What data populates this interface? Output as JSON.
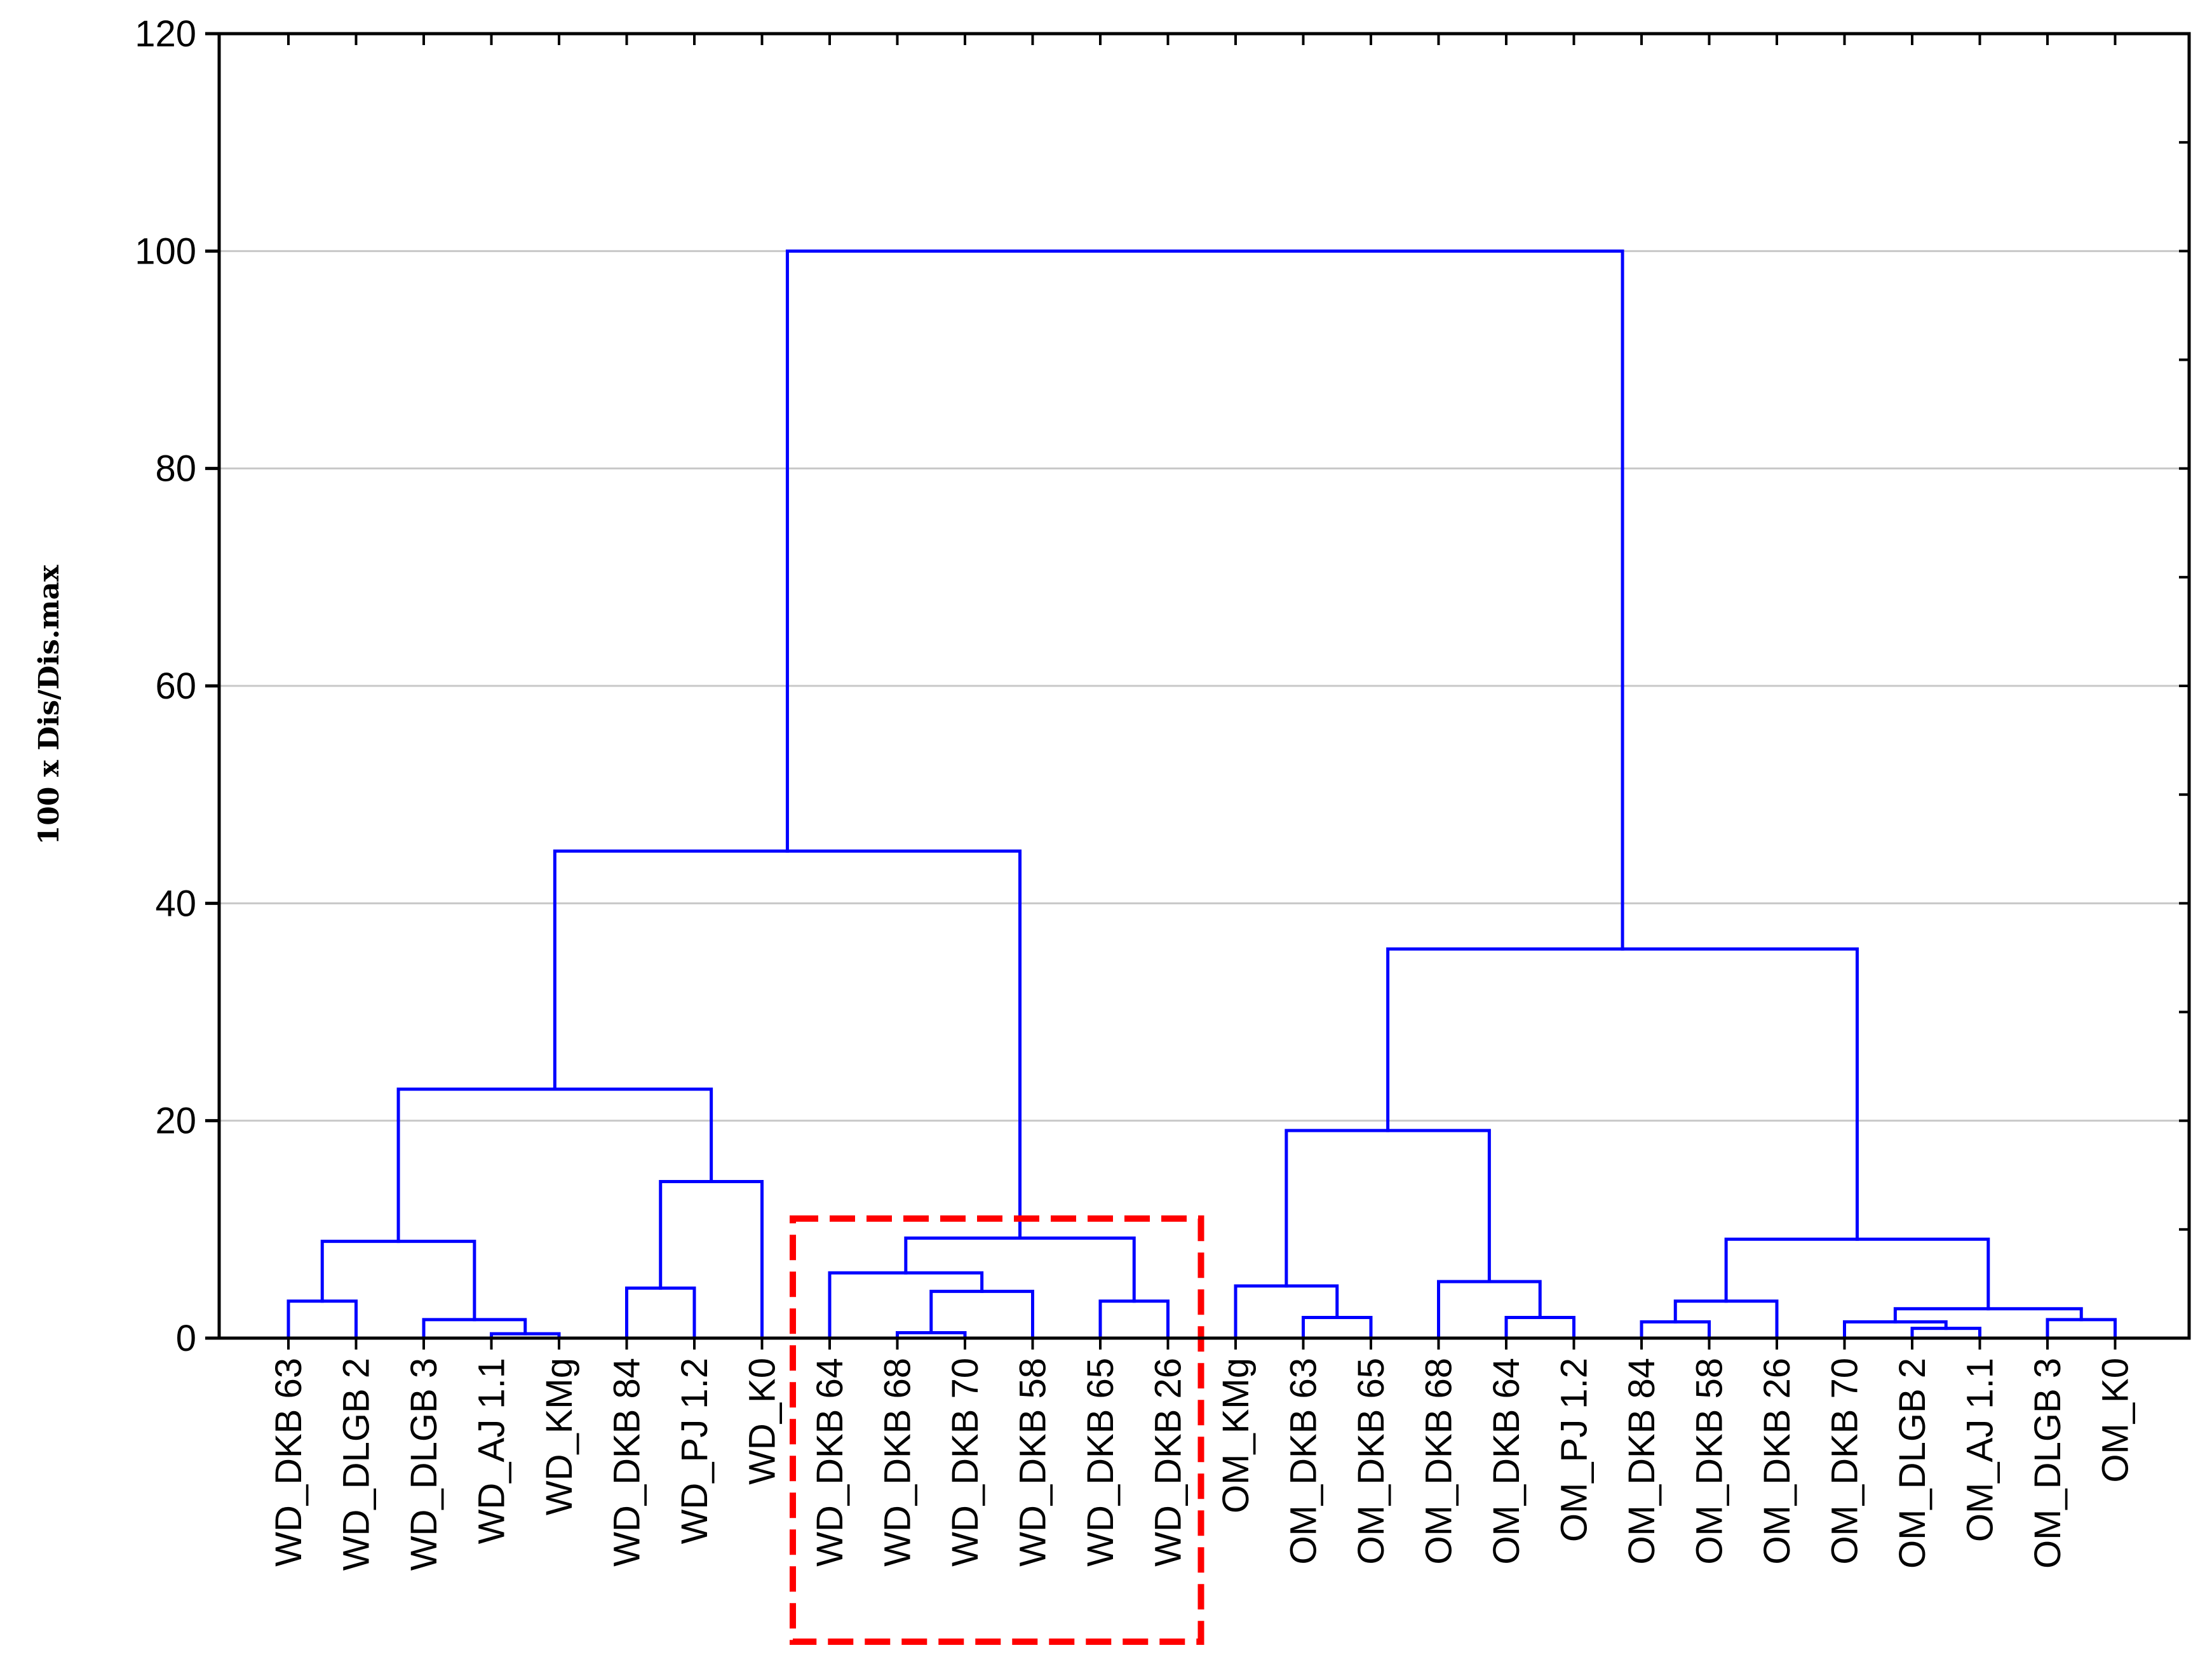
{
  "chart_data": {
    "type": "dendrogram",
    "ylabel": "100 x Dis/Dis.max",
    "xlabel": "",
    "title": "",
    "ylim": [
      0,
      120
    ],
    "yticks": [
      0,
      20,
      40,
      60,
      80,
      100,
      120
    ],
    "grid": true,
    "colors": {
      "links": "#0000ff",
      "grid": "#c8c8c8",
      "highlight": "#ff0000"
    },
    "leaves": [
      "WD_DKB 63",
      "WD_DLGB 2",
      "WD_DLGB 3",
      "WD_AJ 1.1",
      "WD_KMg",
      "WD_DKB 84",
      "WD_PJ 1.2",
      "WD_K0",
      "WD_DKB 64",
      "WD_DKB 68",
      "WD_DKB 70",
      "WD_DKB 58",
      "WD_DKB 65",
      "WD_DKB 26",
      "OM_KMg",
      "OM_DKB 63",
      "OM_DKB 65",
      "OM_DKB 68",
      "OM_DKB 64",
      "OM_PJ 1.2",
      "OM_DKB 84",
      "OM_DKB 58",
      "OM_DKB 26",
      "OM_DKB 70",
      "OM_DLGB 2",
      "OM_AJ 1.1",
      "OM_DLGB 3",
      "OM_K0"
    ],
    "merges": [
      {
        "id": "A",
        "children": [
          "L0",
          "L1"
        ],
        "height": 3.4
      },
      {
        "id": "B",
        "children": [
          "L3",
          "L4"
        ],
        "height": 0.4
      },
      {
        "id": "C",
        "children": [
          "L2",
          "B"
        ],
        "height": 1.7
      },
      {
        "id": "D",
        "children": [
          "A",
          "C"
        ],
        "height": 8.9
      },
      {
        "id": "E",
        "children": [
          "L5",
          "L6"
        ],
        "height": 4.6
      },
      {
        "id": "F",
        "children": [
          "E",
          "L7"
        ],
        "height": 14.4
      },
      {
        "id": "G",
        "children": [
          "D",
          "F"
        ],
        "height": 22.9
      },
      {
        "id": "H",
        "children": [
          "L9",
          "L10"
        ],
        "height": 0.5
      },
      {
        "id": "I",
        "children": [
          "H",
          "L11"
        ],
        "height": 4.3
      },
      {
        "id": "J",
        "children": [
          "L8",
          "I"
        ],
        "height": 6.0
      },
      {
        "id": "K",
        "children": [
          "L12",
          "L13"
        ],
        "height": 3.4
      },
      {
        "id": "M",
        "children": [
          "J",
          "K"
        ],
        "height": 9.2
      },
      {
        "id": "N",
        "children": [
          "G",
          "M"
        ],
        "height": 44.8
      },
      {
        "id": "O",
        "children": [
          "L15",
          "L16"
        ],
        "height": 1.9
      },
      {
        "id": "P",
        "children": [
          "L14",
          "O"
        ],
        "height": 4.8
      },
      {
        "id": "Q",
        "children": [
          "L18",
          "L19"
        ],
        "height": 1.9
      },
      {
        "id": "R",
        "children": [
          "L17",
          "Q"
        ],
        "height": 5.2
      },
      {
        "id": "S",
        "children": [
          "P",
          "R"
        ],
        "height": 19.1
      },
      {
        "id": "T",
        "children": [
          "L20",
          "L21"
        ],
        "height": 1.5
      },
      {
        "id": "U",
        "children": [
          "T",
          "L22"
        ],
        "height": 3.4
      },
      {
        "id": "V",
        "children": [
          "L24",
          "L25"
        ],
        "height": 0.9
      },
      {
        "id": "W",
        "children": [
          "L23",
          "V"
        ],
        "height": 1.5
      },
      {
        "id": "X",
        "children": [
          "L26",
          "L27"
        ],
        "height": 1.7
      },
      {
        "id": "Y",
        "children": [
          "W",
          "X"
        ],
        "height": 2.7
      },
      {
        "id": "Z",
        "children": [
          "U",
          "Y"
        ],
        "height": 9.1
      },
      {
        "id": "AA",
        "children": [
          "S",
          "Z"
        ],
        "height": 35.8
      },
      {
        "id": "AB",
        "children": [
          "N",
          "AA"
        ],
        "height": 100
      }
    ],
    "highlight_box": {
      "leaves": [
        "WD_DKB 64",
        "WD_DKB 68",
        "WD_DKB 70",
        "WD_DKB 58",
        "WD_DKB 65",
        "WD_DKB 26"
      ],
      "top": 11.0,
      "style": "dashed"
    }
  }
}
